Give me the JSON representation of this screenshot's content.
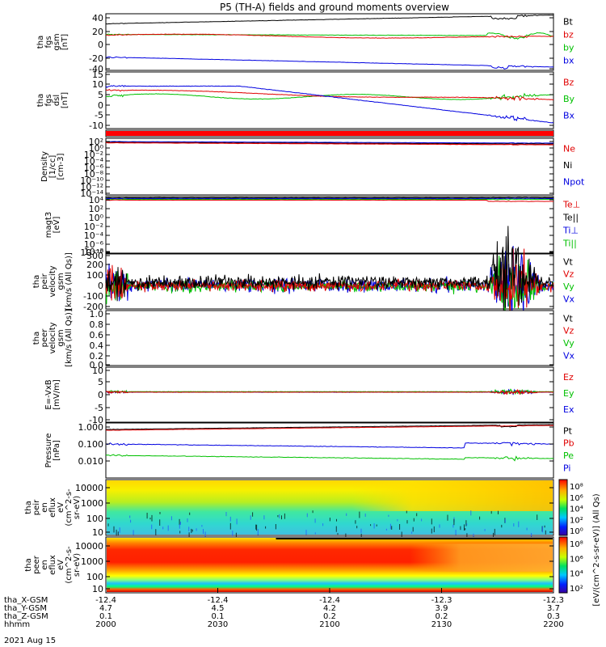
{
  "title": "P5 (TH-A) fields and ground moments overview",
  "date_label": "2021 Aug 15",
  "colors": {
    "black": "#000000",
    "red": "#e00000",
    "green": "#00c000",
    "blue": "#0000e0"
  },
  "chart_data": [
    {
      "type": "line",
      "panel": "fgs_gsm",
      "ylabel": [
        "tha",
        "fgs",
        "gsm",
        "[nT]"
      ],
      "ylim": [
        -40,
        45
      ],
      "yticks": [
        "40",
        "20",
        "0",
        "-20",
        "-40"
      ],
      "legend": [
        "Bt",
        "bz",
        "by",
        "bx"
      ]
    },
    {
      "type": "line",
      "panel": "fgs_dsl",
      "ylabel": [
        "tha",
        "fgs",
        "dsl",
        "[nT]"
      ],
      "ylim": [
        -13,
        15
      ],
      "yticks": [
        "15",
        "10",
        "5",
        "0",
        "-5",
        "-10"
      ],
      "legend": [
        "Bz",
        "By",
        "Bx"
      ]
    },
    {
      "type": "bar",
      "panel": "flag_bar",
      "color": "#ff0000"
    },
    {
      "type": "line",
      "panel": "density",
      "ylabel": [
        "Density",
        "[1/cc]",
        "[cm-3]"
      ],
      "yscale": "log",
      "yticks": [
        "10²",
        "10⁰",
        "10⁻²",
        "10⁻⁴",
        "10⁻⁶",
        "10⁻⁸",
        "10⁻¹⁰",
        "10⁻¹²",
        "10⁻¹⁴"
      ],
      "legend": [
        "Ne",
        "Ni",
        "Npot"
      ]
    },
    {
      "type": "line",
      "panel": "temperature",
      "ylabel": [
        "magt3",
        "[eV]"
      ],
      "yscale": "log",
      "yticks": [
        "10⁴",
        "10²",
        "10⁰",
        "10⁻²",
        "10⁻⁴",
        "10⁻⁶",
        "10⁻⁸",
        "10⁻¹⁰"
      ],
      "legend": [
        "Te⊥",
        "Te||",
        "Ti⊥",
        "Ti||"
      ]
    },
    {
      "type": "line",
      "panel": "ion_velocity",
      "ylabel": [
        "tha",
        "peir",
        "velocity",
        "gsm",
        "[km/s (All Qs)]"
      ],
      "ylim": [
        -200,
        300
      ],
      "yticks": [
        "300",
        "200",
        "100",
        "0",
        "-100",
        "-200"
      ],
      "legend": [
        "Vt",
        "Vz",
        "Vy",
        "Vx"
      ]
    },
    {
      "type": "line",
      "panel": "electron_velocity",
      "ylabel": [
        "tha",
        "peer",
        "velocity",
        "gsm",
        "[km/s (All Qs)]"
      ],
      "ylim": [
        0,
        1
      ],
      "yticks": [
        "1.0",
        "0.8",
        "0.6",
        "0.4",
        "0.2",
        "0.0"
      ],
      "legend": [
        "Vt",
        "Vz",
        "Vy",
        "Vx"
      ]
    },
    {
      "type": "line",
      "panel": "efield",
      "ylabel": [
        "E=-VxB",
        "[mV/m]"
      ],
      "ylim": [
        -12,
        10
      ],
      "yticks": [
        "10",
        "5",
        "0",
        "-5",
        "-10"
      ],
      "legend": [
        "Ez",
        "Ey",
        "Ex"
      ]
    },
    {
      "type": "line",
      "panel": "pressure",
      "ylabel": [
        "Pressure",
        "[nPa]"
      ],
      "yscale": "log",
      "yticks": [
        "1.000",
        "0.100",
        "0.010"
      ],
      "legend": [
        "Pt",
        "Pb",
        "Pe",
        "Pi"
      ]
    },
    {
      "type": "heatmap",
      "panel": "ion_spectrogram",
      "ylabel": [
        "tha",
        "peir",
        "en",
        "eflux",
        "eV",
        "(cm^2-s-",
        "sr-eV)"
      ],
      "yscale": "log",
      "yticks": [
        "10000",
        "1000",
        "100",
        "10"
      ],
      "colorbar_ticks": [
        "10⁸",
        "10⁶",
        "10⁴",
        "10²",
        "10⁰"
      ]
    },
    {
      "type": "heatmap",
      "panel": "electron_spectrogram",
      "ylabel": [
        "tha",
        "peer",
        "en",
        "eflux",
        "eV",
        "(cm^2-s-",
        "sr-eV)"
      ],
      "yscale": "log",
      "yticks": [
        "10000",
        "1000",
        "100",
        "10"
      ],
      "colorbar_ticks": [
        "10⁸",
        "10⁶",
        "10⁴",
        "10²"
      ]
    }
  ],
  "colorbar_label": "[eV/(cm^2-s-sr-eV)] (All Qs)",
  "xaxis": {
    "row_labels": [
      "tha_X-GSM",
      "tha_Y-GSM",
      "tha_Z-GSM",
      "hhmm"
    ],
    "rows": [
      [
        "-12.4",
        "-12.4",
        "-12.4",
        "-12.3",
        "-12.3"
      ],
      [
        "4.7",
        "4.5",
        "4.2",
        "3.9",
        "3.7"
      ],
      [
        "0.1",
        "0.1",
        "0.2",
        "0.2",
        "0.3"
      ],
      [
        "2000",
        "2030",
        "2100",
        "2130",
        "2200"
      ]
    ]
  }
}
